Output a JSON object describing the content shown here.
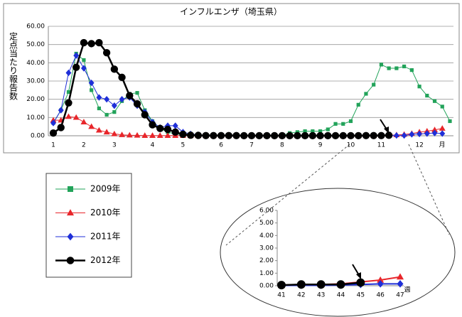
{
  "chart_data": [
    {
      "type": "line",
      "title": "インフルエンザ（埼玉県）",
      "y_label": "定点当たり報告数",
      "x_unit": "月",
      "categories": [
        "1",
        null,
        null,
        null,
        "2",
        null,
        null,
        null,
        "3",
        null,
        null,
        null,
        null,
        "4",
        null,
        null,
        null,
        "5",
        null,
        null,
        null,
        null,
        "6",
        null,
        null,
        null,
        "7",
        null,
        null,
        null,
        "8",
        null,
        null,
        null,
        null,
        "9",
        null,
        null,
        null,
        "10",
        null,
        null,
        null,
        "11",
        null,
        null,
        null,
        null,
        "12",
        null,
        null,
        null,
        null
      ],
      "ylim": [
        0,
        60
      ],
      "yticks": [
        {
          "value": 0,
          "label": "0.00"
        },
        {
          "value": 10,
          "label": "10.00"
        },
        {
          "value": 20,
          "label": "20.00"
        },
        {
          "value": 30,
          "label": "30.00"
        },
        {
          "value": 40,
          "label": "40.00"
        },
        {
          "value": 50,
          "label": "50.00"
        },
        {
          "value": 60,
          "label": "60.00"
        }
      ],
      "grid": true,
      "series": [
        {
          "name": "2009年",
          "color": "#22a35a",
          "marker": "square",
          "values": [
            7,
            14,
            24,
            45,
            41.5,
            25,
            15,
            11.5,
            13,
            19,
            23,
            23.5,
            14,
            8,
            4,
            2,
            1,
            0.5,
            0.3,
            0.2,
            0.1,
            0.1,
            0.1,
            0.1,
            0.1,
            0.1,
            0.1,
            0.1,
            0.1,
            0.1,
            0.1,
            1.5,
            2,
            2.5,
            2.5,
            2.5,
            3.5,
            6.5,
            6.5,
            8,
            17,
            23,
            28,
            39,
            37,
            37,
            38,
            36,
            27,
            22,
            19,
            16,
            8
          ]
        },
        {
          "name": "2010年",
          "color": "#e8262b",
          "marker": "triangle",
          "values": [
            8.5,
            8.5,
            10.5,
            10,
            7.5,
            5,
            3,
            2,
            1,
            0.5,
            0.3,
            0.2,
            0.1,
            0.1,
            0.1,
            0.1,
            0.1,
            0.1,
            0.05,
            0.05,
            0.05,
            0.05,
            0.05,
            0.05,
            0.05,
            0.05,
            0.05,
            0.05,
            0.05,
            0.05,
            0.05,
            0.05,
            0.05,
            0.05,
            0.05,
            0.05,
            0.05,
            0.05,
            0.05,
            0.05,
            0.05,
            0.1,
            0.1,
            0.15,
            0.3,
            0.45,
            0.7,
            1.2,
            2,
            2.5,
            3.2,
            4,
            null
          ]
        },
        {
          "name": "2011年",
          "color": "#1f2fd8",
          "marker": "diamond",
          "values": [
            7,
            14,
            34.5,
            44,
            37,
            29,
            21,
            20,
            16.5,
            20,
            21,
            16.5,
            13,
            7.5,
            4.5,
            5.5,
            5.5,
            2,
            1,
            0.5,
            0.05,
            0.05,
            0.05,
            0.05,
            0.05,
            0.05,
            0.05,
            0.05,
            0.05,
            0.05,
            0.05,
            0.05,
            0.05,
            0.05,
            0.05,
            0.05,
            0.05,
            0.05,
            0.05,
            0.05,
            0.02,
            0.03,
            0.03,
            0.05,
            0.1,
            0.15,
            0.15,
            0.8,
            1,
            1.2,
            1.5,
            1.2,
            null
          ]
        },
        {
          "name": "2012年",
          "color": "#000000",
          "marker": "circle",
          "values": [
            1.5,
            4.5,
            18,
            37.5,
            51,
            50.5,
            51,
            45.5,
            36.5,
            32,
            22,
            17.5,
            11.5,
            6,
            4,
            3.5,
            2,
            0.8,
            0.3,
            0.2,
            0.1,
            0.1,
            0.1,
            0.1,
            0.1,
            0.05,
            0.05,
            0.05,
            0.05,
            0.05,
            0.05,
            0.05,
            0.05,
            0.05,
            0.05,
            0.05,
            0.05,
            0.05,
            0.05,
            0.05,
            0.05,
            0.1,
            0.1,
            0.1,
            0.25,
            null,
            null,
            null,
            null,
            null,
            null,
            null,
            null
          ]
        }
      ]
    },
    {
      "type": "line",
      "x_unit": "週",
      "categories": [
        "41",
        "42",
        "43",
        "44",
        "45",
        "46",
        "47"
      ],
      "ylim": [
        0,
        6
      ],
      "yticks": [
        {
          "value": 0,
          "label": "0.00"
        },
        {
          "value": 1,
          "label": "1.00"
        },
        {
          "value": 2,
          "label": "2.00"
        },
        {
          "value": 3,
          "label": "3.00"
        },
        {
          "value": 4,
          "label": "4.00"
        },
        {
          "value": 5,
          "label": "5.00"
        },
        {
          "value": 6,
          "label": "6.00"
        }
      ],
      "grid": false,
      "series": [
        {
          "color": "#e8262b",
          "marker": "triangle",
          "values": [
            0.05,
            0.1,
            0.1,
            0.15,
            0.3,
            0.45,
            0.7
          ]
        },
        {
          "color": "#1f2fd8",
          "marker": "diamond",
          "values": [
            0.02,
            0.03,
            0.03,
            0.05,
            0.1,
            0.15,
            0.15
          ]
        },
        {
          "color": "#000000",
          "marker": "circle",
          "values": [
            0.05,
            0.1,
            0.1,
            0.1,
            0.25,
            null,
            null
          ]
        }
      ]
    }
  ]
}
